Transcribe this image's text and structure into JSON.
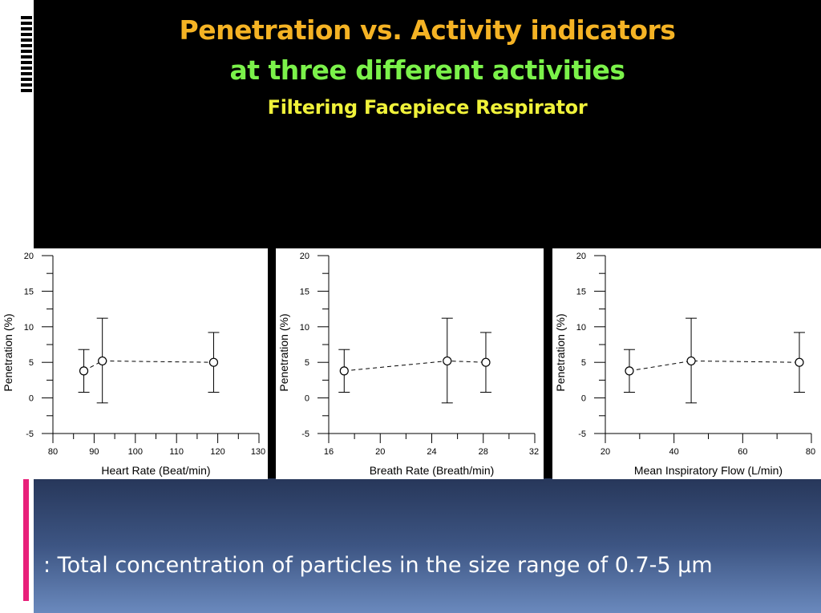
{
  "slide": {
    "title_line1": "Penetration vs. Activity indicators",
    "title_line2": "at three different activities",
    "title_line3": "Filtering Facepiece Respirator",
    "footnote": ": Total concentration of particles in the size range of 0.7-5 μm",
    "colors": {
      "title_line1": "#f5b324",
      "title_line2": "#7bf24a",
      "title_line3": "#f0f23a",
      "accent_bar": "#e8207a"
    }
  },
  "chart_data": [
    {
      "type": "scatter",
      "xlabel": "Heart Rate (Beat/min)",
      "ylabel": "Penetration (%)",
      "xlim": [
        80,
        130
      ],
      "ylim": [
        -5,
        20
      ],
      "x_ticks": [
        80,
        90,
        100,
        110,
        120,
        130
      ],
      "y_ticks": [
        -5,
        0,
        5,
        10,
        15,
        20
      ],
      "points": [
        {
          "x": 87.5,
          "y": 3.8,
          "err_low": 0.8,
          "err_high": 6.8
        },
        {
          "x": 92,
          "y": 5.2,
          "err_low": -0.7,
          "err_high": 11.2
        },
        {
          "x": 119,
          "y": 5.0,
          "err_low": 0.8,
          "err_high": 9.2
        }
      ],
      "line_style": "dashed",
      "marker": "open-circle",
      "grid": false
    },
    {
      "type": "scatter",
      "xlabel": "Breath Rate (Breath/min)",
      "ylabel": "Penetration (%)",
      "xlim": [
        16,
        32
      ],
      "ylim": [
        -5,
        20
      ],
      "x_ticks": [
        16,
        20,
        24,
        28,
        32
      ],
      "y_ticks": [
        -5,
        0,
        5,
        10,
        15,
        20
      ],
      "points": [
        {
          "x": 17.2,
          "y": 3.8,
          "err_low": 0.8,
          "err_high": 6.8
        },
        {
          "x": 25.2,
          "y": 5.2,
          "err_low": -0.7,
          "err_high": 11.2
        },
        {
          "x": 28.2,
          "y": 5.0,
          "err_low": 0.8,
          "err_high": 9.2
        }
      ],
      "line_style": "dashed",
      "marker": "open-circle",
      "grid": false
    },
    {
      "type": "scatter",
      "xlabel": "Mean Inspiratory Flow (L/min)",
      "ylabel": "Penetration (%)",
      "xlim": [
        20,
        80
      ],
      "ylim": [
        -5,
        20
      ],
      "x_ticks": [
        20,
        40,
        60,
        80
      ],
      "y_ticks": [
        -5,
        0,
        5,
        10,
        15,
        20
      ],
      "points": [
        {
          "x": 27,
          "y": 3.8,
          "err_low": 0.8,
          "err_high": 6.8
        },
        {
          "x": 45,
          "y": 5.2,
          "err_low": -0.7,
          "err_high": 11.2
        },
        {
          "x": 76.5,
          "y": 5.0,
          "err_low": 0.8,
          "err_high": 9.2
        }
      ],
      "line_style": "dashed",
      "marker": "open-circle",
      "grid": false
    }
  ]
}
